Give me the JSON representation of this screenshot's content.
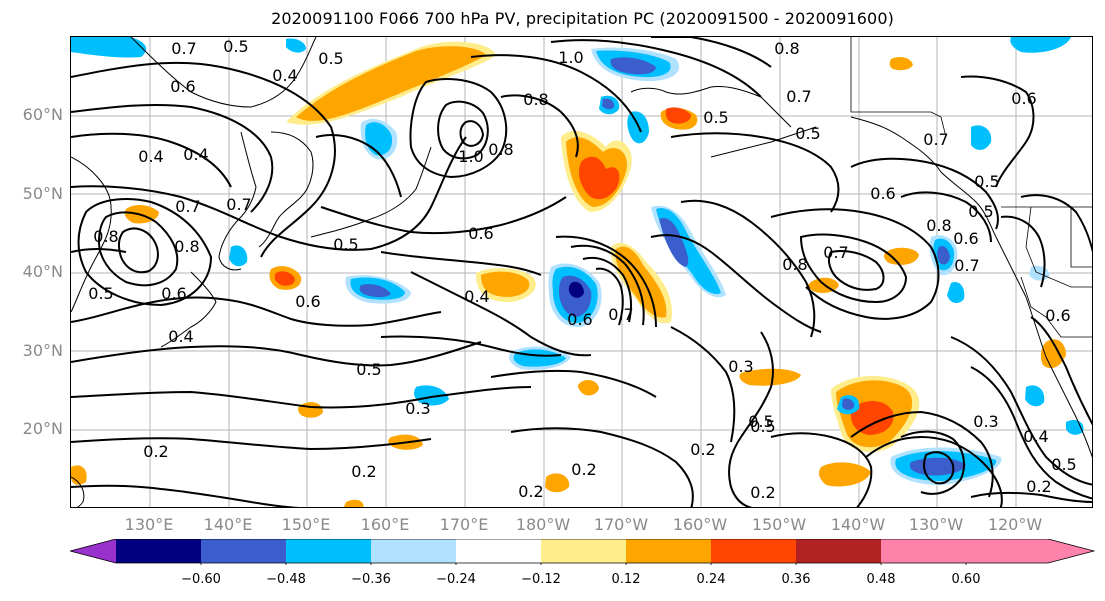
{
  "title": "2020091100 F066 700 hPa PV, precipitation PC (2020091500 - 2020091600)",
  "lat_labels": [
    "60°N",
    "50°N",
    "40°N",
    "30°N",
    "20°N"
  ],
  "lon_labels": [
    "130°E",
    "140°E",
    "150°E",
    "160°E",
    "170°E",
    "180°W",
    "170°W",
    "160°W",
    "150°W",
    "140°W",
    "130°W",
    "120°W"
  ],
  "colorbar": {
    "colors": [
      "#9932cc",
      "#000080",
      "#3a5fcd",
      "#00bfff",
      "#b0e2ff",
      "#ffffff",
      "#ffec8b",
      "#ffa500",
      "#ff4500",
      "#b22222",
      "#ff82ab"
    ],
    "ticks": [
      "−0.60",
      "−0.48",
      "−0.36",
      "−0.24",
      "−0.12",
      "0.12",
      "0.24",
      "0.36",
      "0.48",
      "0.60"
    ]
  },
  "contour_labels": [
    "0.8",
    "0.7",
    "0.5",
    "0.4",
    "0.5",
    "1.0",
    "0.8",
    "0.7",
    "0.6",
    "0.8",
    "0.5",
    "0.6",
    "0.4",
    "0.4",
    "1.0",
    "0.8",
    "0.5",
    "0.6",
    "0.7",
    "0.8",
    "0.7",
    "0.8",
    "0.6",
    "0.5",
    "0.6",
    "0.4",
    "0.6",
    "0.4",
    "0.7",
    "0.6",
    "0.5",
    "0.7",
    "0.8",
    "0.7",
    "0.5",
    "0.3",
    "0.3",
    "0.5",
    "0.2",
    "0.2",
    "0.2",
    "0.2",
    "0.3",
    "0.2",
    "0.4",
    "0.5",
    "0.2",
    "0.2",
    "0.6",
    "0.5",
    "0.7",
    "0.6",
    "0.5",
    "0.5"
  ]
}
